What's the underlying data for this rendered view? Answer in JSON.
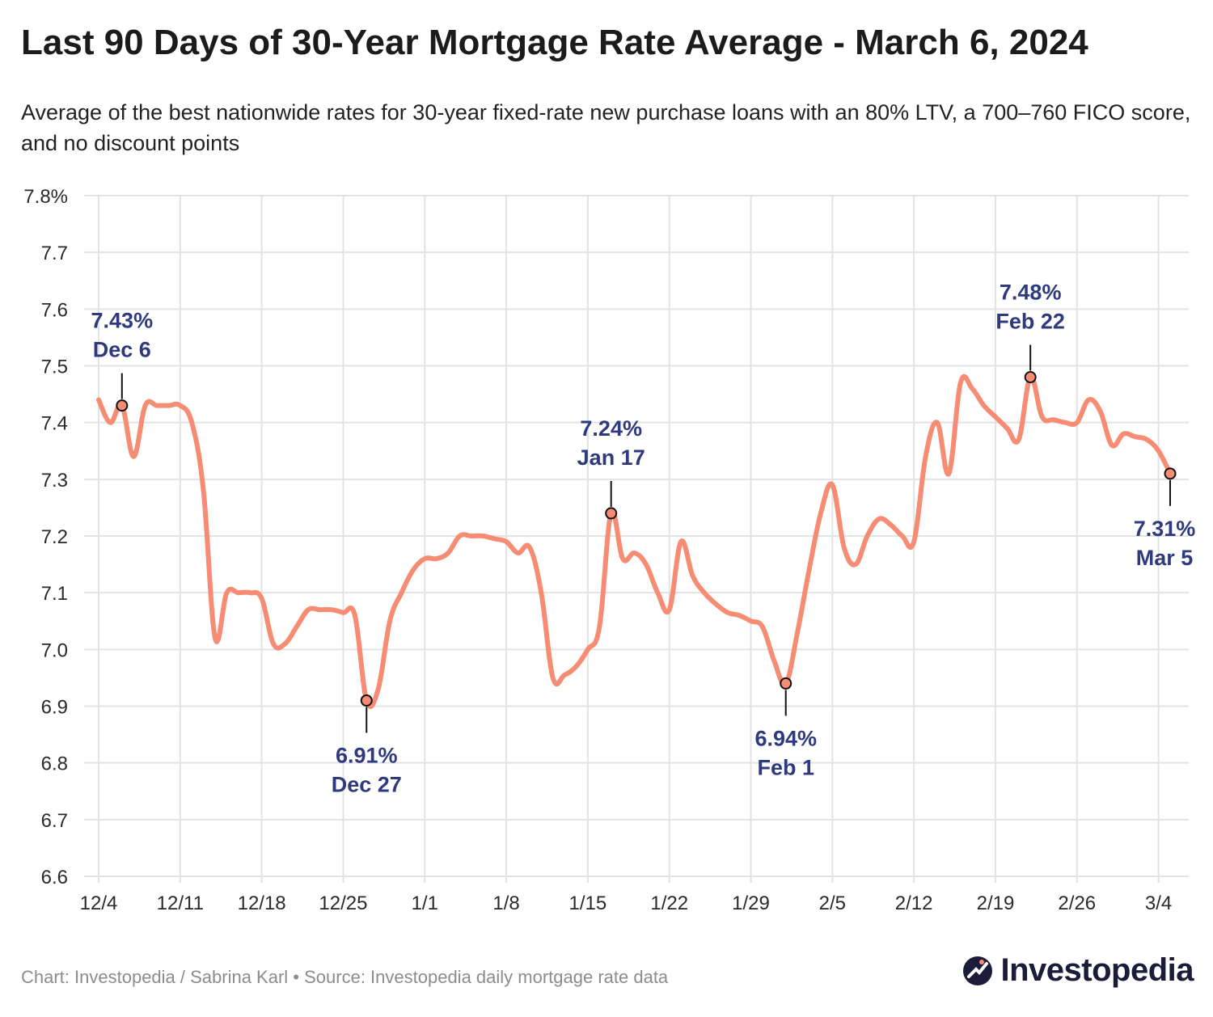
{
  "header": {
    "title": "Last 90 Days of 30-Year Mortgage Rate Average - March 6, 2024",
    "subtitle": "Average of the best nationwide rates for 30-year fixed-rate new purchase loans with an 80% LTV, a 700–760 FICO score, and no discount points"
  },
  "footer": {
    "credit": "Chart: Investopedia / Sabrina Karl • Source: Investopedia daily mortgage rate data",
    "brand": "Investopedia"
  },
  "colors": {
    "line": "#f58c73",
    "annotation": "#2e3a7d",
    "grid": "#e3e3e3",
    "brand": "#1c1c3a"
  },
  "icons": {
    "brand_logo": "investopedia-logo-icon"
  },
  "chart_data": {
    "type": "line",
    "title": "Last 90 Days of 30-Year Mortgage Rate Average - March 6, 2024",
    "subtitle": "Average of the best nationwide rates for 30-year fixed-rate new purchase loans with an 80% LTV, a 700–760 FICO score, and no discount points",
    "xlabel": "",
    "ylabel": "",
    "x_ticks": [
      "12/4",
      "12/11",
      "12/18",
      "12/25",
      "1/1",
      "1/8",
      "1/15",
      "1/22",
      "1/29",
      "2/5",
      "2/12",
      "2/19",
      "2/26",
      "3/4"
    ],
    "y_ticks": [
      "6.6",
      "6.7",
      "6.8",
      "6.9",
      "7.0",
      "7.1",
      "7.2",
      "7.3",
      "7.4",
      "7.5",
      "7.6",
      "7.7",
      "7.8%"
    ],
    "xlim": [
      "2023-12-04",
      "2024-03-05"
    ],
    "ylim": [
      6.6,
      7.8
    ],
    "grid": true,
    "series": [
      {
        "points": [
          [
            "2023-12-04",
            7.44
          ],
          [
            "2023-12-05",
            7.4
          ],
          [
            "2023-12-06",
            7.43
          ],
          [
            "2023-12-07",
            7.34
          ],
          [
            "2023-12-08",
            7.43
          ],
          [
            "2023-12-09",
            7.43
          ],
          [
            "2023-12-10",
            7.43
          ],
          [
            "2023-12-11",
            7.43
          ],
          [
            "2023-12-12",
            7.4
          ],
          [
            "2023-12-13",
            7.28
          ],
          [
            "2023-12-14",
            7.02
          ],
          [
            "2023-12-15",
            7.1
          ],
          [
            "2023-12-16",
            7.1
          ],
          [
            "2023-12-17",
            7.1
          ],
          [
            "2023-12-18",
            7.09
          ],
          [
            "2023-12-19",
            7.01
          ],
          [
            "2023-12-20",
            7.01
          ],
          [
            "2023-12-21",
            7.04
          ],
          [
            "2023-12-22",
            7.07
          ],
          [
            "2023-12-23",
            7.07
          ],
          [
            "2023-12-24",
            7.07
          ],
          [
            "2023-12-25",
            7.065
          ],
          [
            "2023-12-26",
            7.06
          ],
          [
            "2023-12-27",
            6.91
          ],
          [
            "2023-12-28",
            6.93
          ],
          [
            "2023-12-29",
            7.05
          ],
          [
            "2023-12-30",
            7.1
          ],
          [
            "2023-12-31",
            7.14
          ],
          [
            "2024-01-01",
            7.16
          ],
          [
            "2024-01-02",
            7.16
          ],
          [
            "2024-01-03",
            7.17
          ],
          [
            "2024-01-04",
            7.2
          ],
          [
            "2024-01-05",
            7.2
          ],
          [
            "2024-01-06",
            7.2
          ],
          [
            "2024-01-07",
            7.195
          ],
          [
            "2024-01-08",
            7.19
          ],
          [
            "2024-01-09",
            7.17
          ],
          [
            "2024-01-10",
            7.18
          ],
          [
            "2024-01-11",
            7.1
          ],
          [
            "2024-01-12",
            6.95
          ],
          [
            "2024-01-13",
            6.955
          ],
          [
            "2024-01-14",
            6.97
          ],
          [
            "2024-01-15",
            7.0
          ],
          [
            "2024-01-16",
            7.04
          ],
          [
            "2024-01-17",
            7.24
          ],
          [
            "2024-01-18",
            7.16
          ],
          [
            "2024-01-19",
            7.17
          ],
          [
            "2024-01-20",
            7.15
          ],
          [
            "2024-01-21",
            7.1
          ],
          [
            "2024-01-22",
            7.07
          ],
          [
            "2024-01-23",
            7.19
          ],
          [
            "2024-01-24",
            7.13
          ],
          [
            "2024-01-25",
            7.1
          ],
          [
            "2024-01-26",
            7.08
          ],
          [
            "2024-01-27",
            7.065
          ],
          [
            "2024-01-28",
            7.06
          ],
          [
            "2024-01-29",
            7.05
          ],
          [
            "2024-01-30",
            7.04
          ],
          [
            "2024-01-31",
            6.98
          ],
          [
            "2024-02-01",
            6.94
          ],
          [
            "2024-02-02",
            7.03
          ],
          [
            "2024-02-03",
            7.14
          ],
          [
            "2024-02-04",
            7.24
          ],
          [
            "2024-02-05",
            7.29
          ],
          [
            "2024-02-06",
            7.18
          ],
          [
            "2024-02-07",
            7.15
          ],
          [
            "2024-02-08",
            7.2
          ],
          [
            "2024-02-09",
            7.23
          ],
          [
            "2024-02-10",
            7.22
          ],
          [
            "2024-02-11",
            7.2
          ],
          [
            "2024-02-12",
            7.19
          ],
          [
            "2024-02-13",
            7.34
          ],
          [
            "2024-02-14",
            7.4
          ],
          [
            "2024-02-15",
            7.31
          ],
          [
            "2024-02-16",
            7.47
          ],
          [
            "2024-02-17",
            7.46
          ],
          [
            "2024-02-18",
            7.43
          ],
          [
            "2024-02-19",
            7.41
          ],
          [
            "2024-02-20",
            7.39
          ],
          [
            "2024-02-21",
            7.37
          ],
          [
            "2024-02-22",
            7.48
          ],
          [
            "2024-02-23",
            7.41
          ],
          [
            "2024-02-24",
            7.405
          ],
          [
            "2024-02-25",
            7.4
          ],
          [
            "2024-02-26",
            7.4
          ],
          [
            "2024-02-27",
            7.44
          ],
          [
            "2024-02-28",
            7.42
          ],
          [
            "2024-02-29",
            7.36
          ],
          [
            "2024-03-01",
            7.38
          ],
          [
            "2024-03-02",
            7.375
          ],
          [
            "2024-03-03",
            7.37
          ],
          [
            "2024-03-04",
            7.35
          ],
          [
            "2024-03-05",
            7.31
          ]
        ]
      }
    ],
    "annotations": [
      {
        "date": "2023-12-06",
        "value": 7.43,
        "label_value": "7.43%",
        "label_date": "Dec 6",
        "position": "above"
      },
      {
        "date": "2023-12-27",
        "value": 6.91,
        "label_value": "6.91%",
        "label_date": "Dec 27",
        "position": "below"
      },
      {
        "date": "2024-01-17",
        "value": 7.24,
        "label_value": "7.24%",
        "label_date": "Jan 17",
        "position": "above"
      },
      {
        "date": "2024-02-01",
        "value": 6.94,
        "label_value": "6.94%",
        "label_date": "Feb 1",
        "position": "below"
      },
      {
        "date": "2024-02-22",
        "value": 7.48,
        "label_value": "7.48%",
        "label_date": "Feb 22",
        "position": "above"
      },
      {
        "date": "2024-03-05",
        "value": 7.31,
        "label_value": "7.31%",
        "label_date": "Mar 5",
        "position": "below"
      }
    ]
  }
}
